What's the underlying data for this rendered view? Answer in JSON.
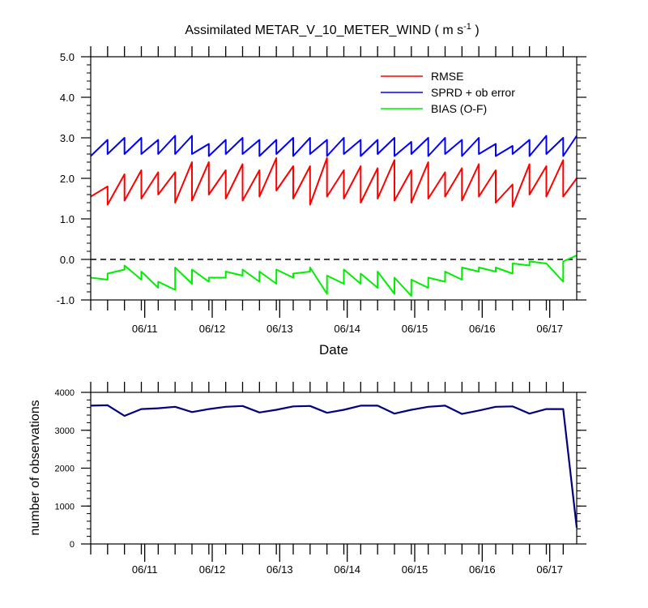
{
  "chart_data": [
    {
      "type": "line",
      "title": "Assimilated METAR_V_10_METER_WIND ( m s",
      "title_superscript": "-1",
      "title_suffix": " )",
      "xlabel": "Date",
      "ylabel": "",
      "ylim": [
        -1.0,
        5.0
      ],
      "xlim": [
        0,
        72
      ],
      "yticks": [
        -1.0,
        0.0,
        1.0,
        2.0,
        3.0,
        4.0,
        5.0
      ],
      "ytick_labels": [
        "-1.0",
        "0.0",
        "1.0",
        "2.0",
        "3.0",
        "4.0",
        "5.0"
      ],
      "xticks": [
        8,
        18,
        28,
        38,
        48,
        58,
        68
      ],
      "xtick_labels": [
        "06/11",
        "06/12",
        "06/13",
        "06/14",
        "06/15",
        "06/16",
        "06/17"
      ],
      "zero_line": 0.0,
      "legend": "top-right",
      "series": [
        {
          "name": "RMSE",
          "color": "#ff0000",
          "x": [
            0,
            2.5,
            2.5,
            5,
            5,
            7.5,
            7.5,
            10,
            10,
            12.5,
            12.5,
            15,
            15,
            17.5,
            17.5,
            20,
            20,
            22.5,
            22.5,
            25,
            25,
            27.5,
            27.5,
            30,
            30,
            32.5,
            32.5,
            35,
            35,
            37.5,
            37.5,
            40,
            40,
            42.5,
            42.5,
            45,
            45,
            47.5,
            47.5,
            50,
            50,
            52.5,
            52.5,
            55,
            55,
            57.5,
            57.5,
            60,
            60,
            62.5,
            62.5,
            65,
            65,
            67.5,
            67.5,
            70,
            70,
            72
          ],
          "values": [
            1.55,
            1.8,
            1.35,
            2.1,
            1.45,
            2.2,
            1.5,
            2.15,
            1.6,
            2.15,
            1.4,
            2.4,
            1.45,
            2.4,
            1.6,
            2.2,
            1.5,
            2.35,
            1.45,
            2.2,
            1.55,
            2.5,
            1.7,
            2.3,
            1.5,
            2.3,
            1.35,
            2.5,
            1.55,
            2.2,
            1.5,
            2.3,
            1.4,
            2.25,
            1.5,
            2.45,
            1.45,
            2.2,
            1.4,
            2.4,
            1.5,
            2.15,
            1.55,
            2.25,
            1.45,
            2.35,
            1.55,
            2.2,
            1.4,
            1.85,
            1.3,
            2.35,
            1.6,
            2.3,
            1.55,
            2.45,
            1.55,
            2.0
          ]
        },
        {
          "name": "SPRD + ob error",
          "color": "#0000ff",
          "x": [
            0,
            2.5,
            2.5,
            5,
            5,
            7.5,
            7.5,
            10,
            10,
            12.5,
            12.5,
            15,
            15,
            17.5,
            17.5,
            20,
            20,
            22.5,
            22.5,
            25,
            25,
            27.5,
            27.5,
            30,
            30,
            32.5,
            32.5,
            35,
            35,
            37.5,
            37.5,
            40,
            40,
            42.5,
            42.5,
            45,
            45,
            47.5,
            47.5,
            50,
            50,
            52.5,
            52.5,
            55,
            55,
            57.5,
            57.5,
            60,
            60,
            62.5,
            62.5,
            65,
            65,
            67.5,
            67.5,
            70,
            70,
            72
          ],
          "values": [
            2.55,
            2.95,
            2.6,
            3.0,
            2.6,
            3.0,
            2.6,
            2.95,
            2.6,
            3.05,
            2.6,
            3.05,
            2.6,
            2.85,
            2.55,
            2.95,
            2.6,
            3.0,
            2.6,
            2.95,
            2.55,
            2.95,
            2.6,
            3.0,
            2.55,
            3.0,
            2.6,
            2.95,
            2.55,
            3.0,
            2.6,
            2.95,
            2.55,
            2.95,
            2.6,
            3.0,
            2.55,
            2.9,
            2.6,
            3.0,
            2.55,
            3.0,
            2.6,
            2.95,
            2.55,
            3.0,
            2.6,
            2.85,
            2.55,
            2.8,
            2.6,
            2.95,
            2.55,
            3.05,
            2.6,
            3.0,
            2.55,
            3.05
          ]
        },
        {
          "name": "BIAS (O-F)",
          "color": "#00ee00",
          "x": [
            0,
            2.5,
            2.5,
            5,
            5,
            7.5,
            7.5,
            10,
            10,
            12.5,
            12.5,
            15,
            15,
            17.5,
            17.5,
            20,
            20,
            22.5,
            22.5,
            25,
            25,
            27.5,
            27.5,
            30,
            30,
            32.5,
            32.5,
            35,
            35,
            37.5,
            37.5,
            40,
            40,
            42.5,
            42.5,
            45,
            45,
            47.5,
            47.5,
            50,
            50,
            52.5,
            52.5,
            55,
            55,
            57.5,
            57.5,
            60,
            60,
            62.5,
            62.5,
            65,
            65,
            67.5,
            67.5,
            70,
            70,
            72
          ],
          "values": [
            -0.45,
            -0.5,
            -0.35,
            -0.25,
            -0.15,
            -0.5,
            -0.3,
            -0.7,
            -0.55,
            -0.75,
            -0.2,
            -0.6,
            -0.25,
            -0.55,
            -0.45,
            -0.45,
            -0.3,
            -0.4,
            -0.25,
            -0.55,
            -0.3,
            -0.6,
            -0.25,
            -0.45,
            -0.35,
            -0.3,
            -0.2,
            -0.85,
            -0.4,
            -0.6,
            -0.25,
            -0.6,
            -0.35,
            -0.7,
            -0.3,
            -0.85,
            -0.45,
            -0.9,
            -0.5,
            -0.7,
            -0.45,
            -0.55,
            -0.3,
            -0.5,
            -0.2,
            -0.3,
            -0.2,
            -0.3,
            -0.2,
            -0.35,
            -0.1,
            -0.15,
            -0.05,
            -0.1,
            -0.1,
            -0.55,
            -0.05,
            0.1
          ]
        }
      ]
    },
    {
      "type": "line",
      "title": "",
      "xlabel": "",
      "ylabel": "number of observations",
      "ylim": [
        0,
        4000
      ],
      "xlim": [
        0,
        72
      ],
      "yticks": [
        0,
        1000,
        2000,
        3000,
        4000
      ],
      "ytick_labels": [
        "0",
        "1000",
        "2000",
        "3000",
        "4000"
      ],
      "xticks": [
        8,
        18,
        28,
        38,
        48,
        58,
        68
      ],
      "xtick_labels": [
        "06/11",
        "06/12",
        "06/13",
        "06/14",
        "06/15",
        "06/16",
        "06/17"
      ],
      "series": [
        {
          "name": "number of observations",
          "color": "#000080",
          "x": [
            0,
            2.5,
            5,
            7.5,
            10,
            12.5,
            15,
            17.5,
            20,
            22.5,
            25,
            27.5,
            30,
            32.5,
            35,
            37.5,
            40,
            42.5,
            45,
            47.5,
            50,
            52.5,
            55,
            57.5,
            60,
            62.5,
            65,
            67.5,
            70,
            72
          ],
          "values": [
            3650,
            3660,
            3380,
            3560,
            3580,
            3620,
            3480,
            3560,
            3620,
            3640,
            3470,
            3540,
            3630,
            3640,
            3460,
            3540,
            3650,
            3650,
            3440,
            3540,
            3620,
            3650,
            3430,
            3520,
            3620,
            3630,
            3440,
            3560,
            3560,
            430
          ]
        }
      ]
    }
  ]
}
